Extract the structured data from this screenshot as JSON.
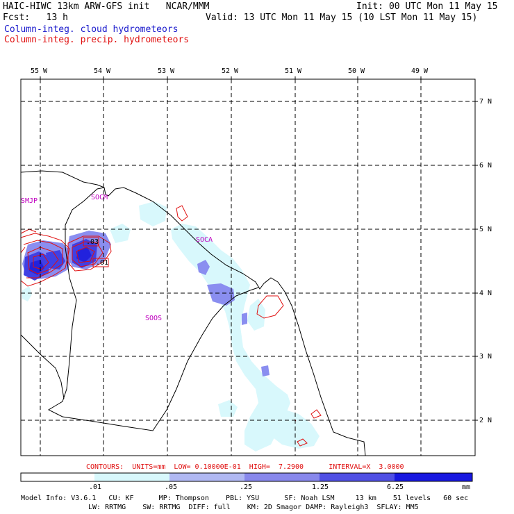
{
  "header": {
    "left_line1": "HAIC-HIWC 13km ARW-GFS init   NCAR/MMM",
    "right_line1": "Init: 00 UTC Mon 11 May 15",
    "left_line2": "Fcst:   13 h",
    "right_line2": "Valid: 13 UTC Mon 11 May 15 (10 LST Mon 11 May 15)",
    "legend_cloud": "Column-integ. cloud hydrometeors",
    "legend_precip": "Column-integ. precip. hydrometeors"
  },
  "colors": {
    "cloud_fill_light": "#d8f8fc",
    "cloud_fill_mid": "#a8acf0",
    "cloud_fill_dark": "#6060e8",
    "cloud_fill_darkest": "#2020dd",
    "precip_contour": "#e01010",
    "station_label": "#c000c0"
  },
  "map": {
    "lon_labels": [
      "55 W",
      "54 W",
      "53 W",
      "52 W",
      "51 W",
      "50 W",
      "49 W"
    ],
    "lat_labels": [
      "7 N",
      "6 N",
      "5 N",
      "4 N",
      "3 N",
      "2 N"
    ],
    "stations": [
      "SMJP",
      "SOCM",
      "SOCA",
      "SOOS"
    ],
    "contour_labels": [
      ".03",
      ".01"
    ]
  },
  "contour_info": {
    "text": "CONTOURS:  UNITS=mm  LOW= 0.10000E-01  HIGH=  7.2900      INTERVAL=X  3.0000"
  },
  "colorbar": {
    "ticks": [
      ".01",
      ".05",
      ".25",
      "1.25",
      "6.25"
    ],
    "unit": "mm",
    "colors": [
      "#ffffff",
      "#d8f8fc",
      "#b8c8f4",
      "#a0a0f0",
      "#6868e8",
      "#4040e0",
      "#1010e0"
    ]
  },
  "footer": {
    "line1": "Model Info: V3.6.1   CU: KF      MP: Thompson    PBL: YSU      SF: Noah LSM     13 km    51 levels   60 sec",
    "line2": "LW: RRTMG    SW: RRTMG  DIFF: full    KM: 2D Smagor DAMP: Rayleigh3  SFLAY: MM5"
  }
}
